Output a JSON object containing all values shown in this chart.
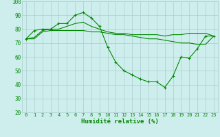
{
  "xlabel": "Humidité relative (%)",
  "bg_color": "#ceeeed",
  "grid_color": "#aacccc",
  "line_color": "#008800",
  "xlim": [
    -0.5,
    23.5
  ],
  "ylim": [
    20,
    100
  ],
  "yticks": [
    20,
    30,
    40,
    50,
    60,
    70,
    80,
    90,
    100
  ],
  "xticks": [
    0,
    1,
    2,
    3,
    4,
    5,
    6,
    7,
    8,
    9,
    10,
    11,
    12,
    13,
    14,
    15,
    16,
    17,
    18,
    19,
    20,
    21,
    22,
    23
  ],
  "series1_x": [
    0,
    1,
    2,
    3,
    4,
    5,
    6,
    7,
    8,
    9,
    10,
    11,
    12,
    13,
    14,
    15,
    16,
    17,
    18,
    19,
    20,
    21,
    22,
    23
  ],
  "series1_y": [
    73,
    79,
    80,
    80,
    84,
    84,
    90,
    92,
    88,
    82,
    67,
    56,
    50,
    47,
    44,
    42,
    42,
    38,
    46,
    60,
    59,
    66,
    75,
    75
  ],
  "series2_x": [
    0,
    1,
    2,
    3,
    4,
    5,
    6,
    7,
    8,
    9,
    10,
    11,
    12,
    13,
    14,
    15,
    16,
    17,
    18,
    19,
    20,
    21,
    22,
    23
  ],
  "series2_y": [
    73,
    74,
    79,
    80,
    80,
    82,
    84,
    85,
    82,
    80,
    78,
    77,
    77,
    76,
    76,
    76,
    76,
    75,
    76,
    76,
    77,
    77,
    77,
    75
  ],
  "series3_x": [
    0,
    1,
    2,
    3,
    4,
    5,
    6,
    7,
    8,
    9,
    10,
    11,
    12,
    13,
    14,
    15,
    16,
    17,
    18,
    19,
    20,
    21,
    22,
    23
  ],
  "series3_y": [
    73,
    73,
    78,
    79,
    79,
    79,
    79,
    79,
    78,
    78,
    77,
    76,
    76,
    75,
    74,
    73,
    73,
    72,
    71,
    70,
    70,
    69,
    69,
    75
  ]
}
